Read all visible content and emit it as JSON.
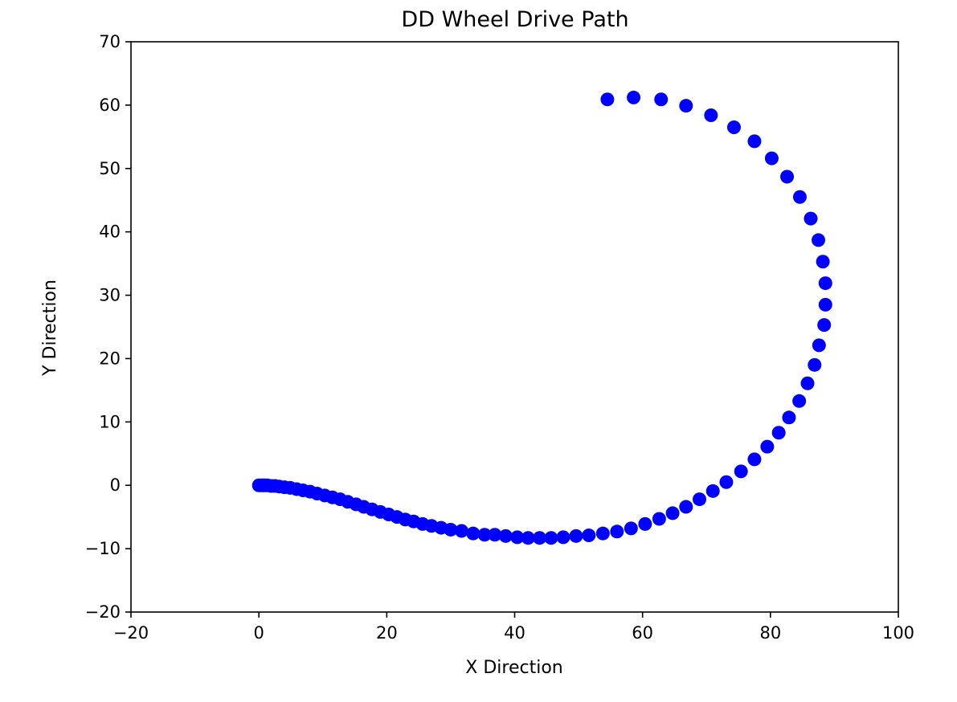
{
  "chart_data": {
    "type": "scatter",
    "title": "DD Wheel Drive Path",
    "xlabel": "X Direction",
    "ylabel": "Y Direction",
    "xlim": [
      -20,
      100
    ],
    "ylim": [
      -20,
      70
    ],
    "xticks": [
      -20,
      0,
      20,
      40,
      60,
      80,
      100
    ],
    "yticks": [
      -20,
      -10,
      0,
      10,
      20,
      30,
      40,
      50,
      60,
      70
    ],
    "xtick_labels": [
      "−20",
      "0",
      "20",
      "40",
      "60",
      "80",
      "100"
    ],
    "ytick_labels": [
      "−20",
      "−10",
      "0",
      "10",
      "20",
      "30",
      "40",
      "50",
      "60",
      "70"
    ],
    "grid": false,
    "marker_color": "#0000ff",
    "series": [
      {
        "points": [
          [
            0.0,
            0.0
          ],
          [
            0.3,
            0.0
          ],
          [
            0.6,
            0.0
          ],
          [
            0.9,
            0.0
          ],
          [
            1.3,
            0.0
          ],
          [
            1.9,
            -0.1
          ],
          [
            2.5,
            -0.1
          ],
          [
            3.2,
            -0.2
          ],
          [
            4.0,
            -0.3
          ],
          [
            4.9,
            -0.4
          ],
          [
            5.9,
            -0.6
          ],
          [
            6.9,
            -0.8
          ],
          [
            8.0,
            -1.0
          ],
          [
            9.1,
            -1.3
          ],
          [
            10.3,
            -1.6
          ],
          [
            11.5,
            -1.9
          ],
          [
            12.7,
            -2.2
          ],
          [
            13.9,
            -2.6
          ],
          [
            15.2,
            -3.0
          ],
          [
            16.4,
            -3.4
          ],
          [
            17.7,
            -3.8
          ],
          [
            19.0,
            -4.2
          ],
          [
            20.3,
            -4.6
          ],
          [
            21.6,
            -5.0
          ],
          [
            22.9,
            -5.4
          ],
          [
            24.2,
            -5.7
          ],
          [
            25.6,
            -6.1
          ],
          [
            27.0,
            -6.4
          ],
          [
            28.5,
            -6.7
          ],
          [
            30.0,
            -7.0
          ],
          [
            31.7,
            -7.2
          ],
          [
            33.5,
            -7.6
          ],
          [
            35.3,
            -7.8
          ],
          [
            36.9,
            -7.8
          ],
          [
            38.6,
            -8.0
          ],
          [
            40.4,
            -8.2
          ],
          [
            42.1,
            -8.3
          ],
          [
            43.9,
            -8.3
          ],
          [
            45.7,
            -8.3
          ],
          [
            47.6,
            -8.2
          ],
          [
            49.6,
            -8.0
          ],
          [
            51.6,
            -7.9
          ],
          [
            53.8,
            -7.6
          ],
          [
            56.0,
            -7.3
          ],
          [
            58.2,
            -6.8
          ],
          [
            60.4,
            -6.1
          ],
          [
            62.6,
            -5.3
          ],
          [
            64.7,
            -4.4
          ],
          [
            66.8,
            -3.4
          ],
          [
            68.9,
            -2.2
          ],
          [
            71.0,
            -0.9
          ],
          [
            73.1,
            0.5
          ],
          [
            75.4,
            2.2
          ],
          [
            77.5,
            4.1
          ],
          [
            79.5,
            6.1
          ],
          [
            81.3,
            8.3
          ],
          [
            82.9,
            10.7
          ],
          [
            84.5,
            13.3
          ],
          [
            85.8,
            16.1
          ],
          [
            86.9,
            19.0
          ],
          [
            87.6,
            22.1
          ],
          [
            88.4,
            25.3
          ],
          [
            88.6,
            28.5
          ],
          [
            88.6,
            31.9
          ],
          [
            88.2,
            35.3
          ],
          [
            87.5,
            38.7
          ],
          [
            86.3,
            42.1
          ],
          [
            84.6,
            45.5
          ],
          [
            82.6,
            48.7
          ],
          [
            80.2,
            51.6
          ],
          [
            77.5,
            54.3
          ],
          [
            74.3,
            56.5
          ],
          [
            70.7,
            58.4
          ],
          [
            66.8,
            59.9
          ],
          [
            62.9,
            60.9
          ],
          [
            58.6,
            61.2
          ],
          [
            54.5,
            60.9
          ]
        ]
      }
    ]
  }
}
